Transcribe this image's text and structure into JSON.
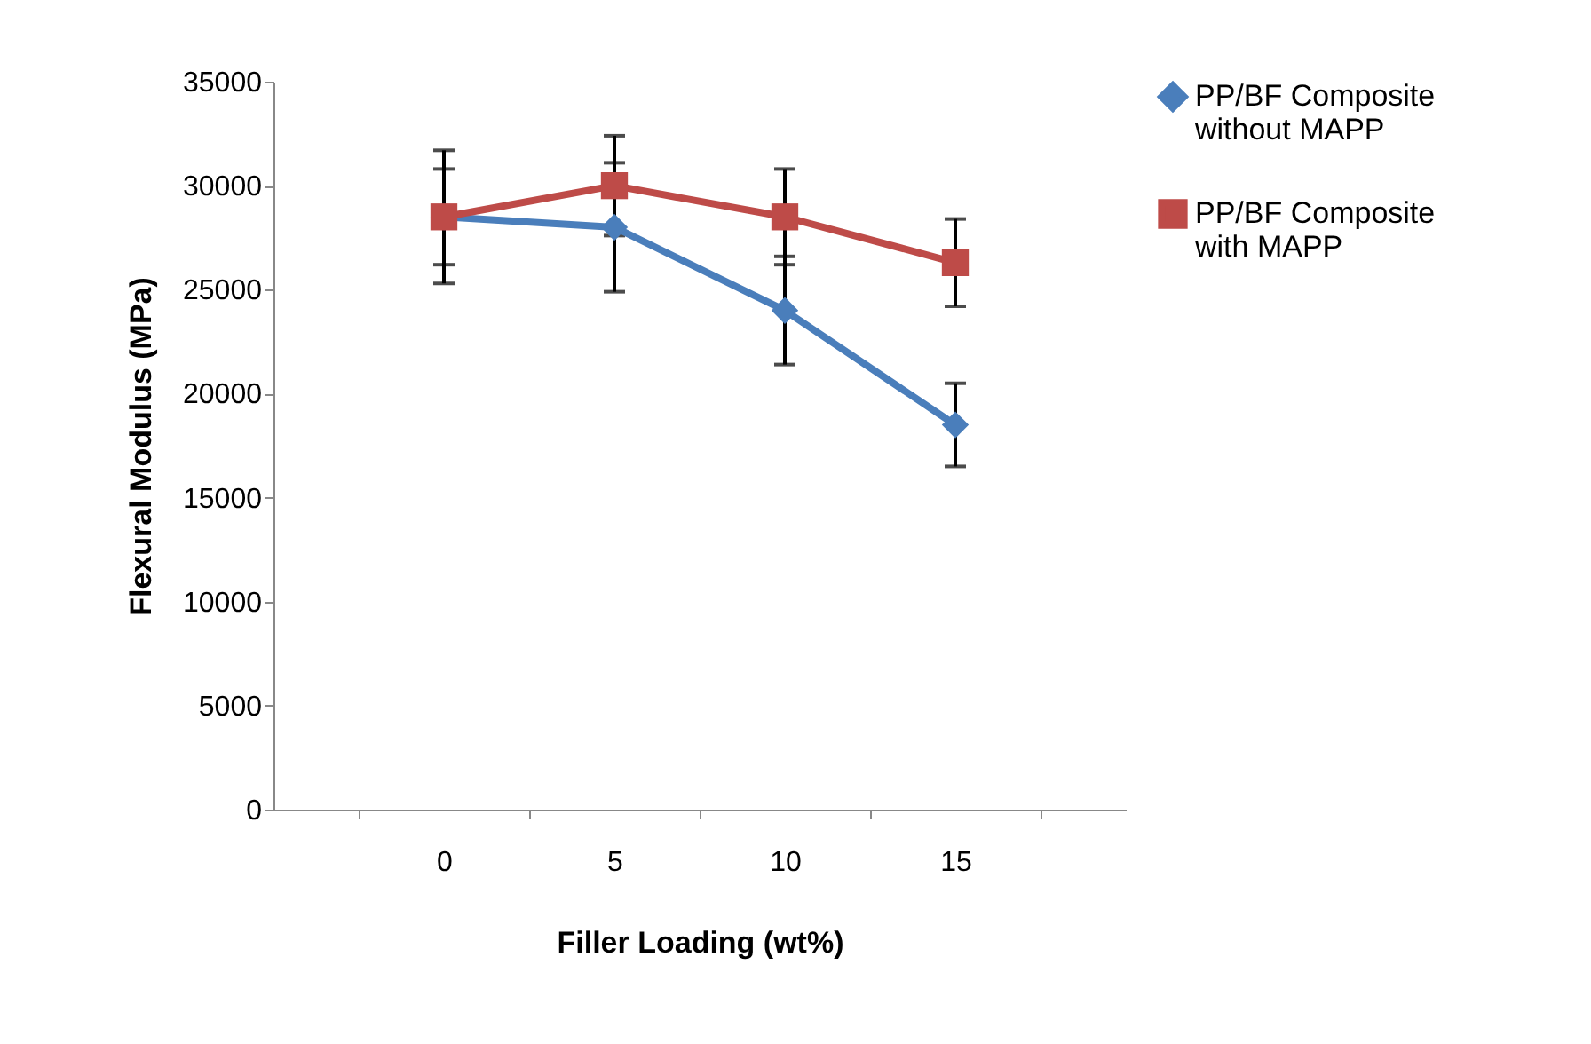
{
  "chart_data": {
    "type": "line",
    "xlabel": "Filler Loading (wt%)",
    "ylabel": "Flexural Modulus (MPa)",
    "categories": [
      "0",
      "5",
      "10",
      "15"
    ],
    "ylim": [
      0,
      35000
    ],
    "yticks": [
      0,
      5000,
      10000,
      15000,
      20000,
      25000,
      30000,
      35000
    ],
    "grid": false,
    "legend": "right",
    "line_style": "solid",
    "series": [
      {
        "name": "PP/BF Composite without MAPP",
        "color": "#4a7ebb",
        "marker": "diamond",
        "values": [
          28500,
          28000,
          24000,
          18500
        ],
        "errors": [
          2300,
          3100,
          2600,
          2000
        ]
      },
      {
        "name": "PP/BF Composite with MAPP",
        "color": "#be4b48",
        "marker": "square",
        "values": [
          28500,
          30000,
          28500,
          26300
        ],
        "errors": [
          3200,
          2400,
          2300,
          2100
        ]
      }
    ]
  }
}
